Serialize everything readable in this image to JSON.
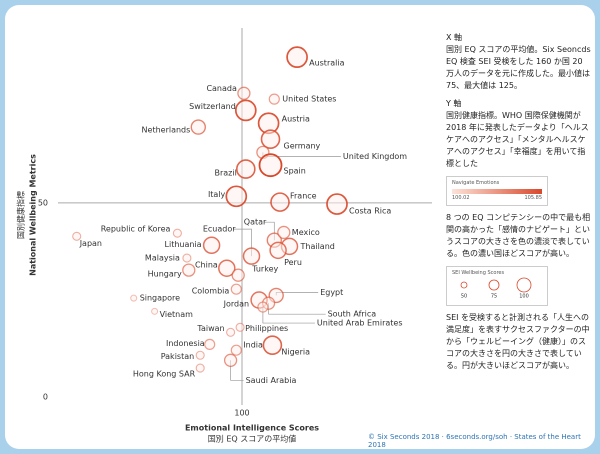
{
  "chart_data": {
    "type": "bubble",
    "x_label": "Emotional Intelligence Scores",
    "x_label_ja": "国別 EQ スコアの平均値",
    "y_label": "National Wellbeing Metrics",
    "y_label_ja": "国別健康指標",
    "labels": [
      "Australia",
      "Canada",
      "United States",
      "Switzerland",
      "Austria",
      "Netherlands",
      "Germany",
      "United Kingdom",
      "Brazil",
      "Spain",
      "Italy",
      "France",
      "Costa Rica",
      "Republic of Korea",
      "Japan",
      "Ecuador",
      "Lithuania",
      "Qatar",
      "Mexico",
      "Thailand",
      "Peru",
      "Malaysia",
      "China",
      "Turkey",
      "Hungary",
      "Colombia",
      "Egypt",
      "Jordan",
      "South Africa",
      "United Arab Emirates",
      "Singapore",
      "Vietnam",
      "Taiwan",
      "Philippines",
      "Indonesia",
      "India",
      "Nigeria",
      "Pakistan",
      "Hong Kong SAR",
      "Saudi Arabia"
    ],
    "x": [
      102.9,
      100.1,
      101.7,
      100.2,
      101.4,
      97.7,
      101.5,
      101.1,
      100.2,
      101.5,
      99.7,
      102.0,
      105.0,
      96.6,
      91.3,
      100.5,
      98.4,
      101.7,
      102.2,
      102.5,
      101.9,
      97.1,
      99.2,
      99.8,
      97.2,
      99.7,
      101.8,
      100.9,
      101.4,
      101.1,
      94.3,
      95.4,
      99.4,
      99.9,
      98.3,
      99.7,
      101.6,
      97.8,
      97.8,
      99.4
    ],
    "values": [
      87.5,
      78.2,
      76.7,
      73.8,
      70.5,
      69.5,
      66.4,
      63.0,
      58.7,
      59.7,
      51.7,
      50.2,
      49.7,
      42.2,
      41.4,
      36.3,
      39.1,
      40.4,
      42.4,
      38.8,
      37.8,
      35.8,
      33.2,
      31.4,
      32.7,
      27.8,
      26.2,
      25.0,
      24.2,
      23.2,
      25.5,
      22.1,
      16.7,
      18.0,
      13.6,
      12.1,
      13.4,
      10.8,
      7.5,
      9.5
    ],
    "sizes": [
      100,
      60,
      50,
      100,
      100,
      70,
      90,
      60,
      90,
      110,
      100,
      90,
      100,
      40,
      40,
      80,
      80,
      70,
      60,
      80,
      80,
      40,
      80,
      60,
      60,
      50,
      70,
      80,
      60,
      50,
      30,
      30,
      40,
      40,
      50,
      50,
      90,
      40,
      40,
      60
    ],
    "color": "#d9482b",
    "xlim": [
      90,
      110
    ],
    "ylim": [
      -2,
      95
    ],
    "xticks": [
      100
    ],
    "yticks": [
      0,
      50
    ],
    "grid": true
  },
  "side_panel": {
    "x_heading": "X 軸",
    "x_text": "国別 EQ スコアの平均値。Six Seoncds EQ 検査 SEI 受検をした 160 か国 20 万人のデータを元に作成した。最小値は 75、最大値は 125。",
    "y_heading": "Y 軸",
    "y_text": "国別健康指標。WHO 国際保健機関が 2018 年に発表したデータより「ヘルスケアへのアクセス」「メンタルヘルスケアへのアクセス」「幸福度」を用いて指標とした",
    "legend1_title": "Navigate Emotions",
    "legend1_min": "100.02",
    "legend1_max": "105.85",
    "legend1_text": "8 つの EQ コンピテンシーの中で最も相関の高かった「感情のナビゲート」というスコアの大きさを色の濃淡で表している。色の濃い国ほどスコアが高い。",
    "legend2_title": "SEI Wellbeing Scores",
    "legend2_ticks": [
      "50",
      "75",
      "100"
    ],
    "legend2_text": "SEI を受検すると計測される「人生への満足度」を表すサクセスファクターの中から「ウェルビーイング（健康）」のスコアの大きさを円の大きさで表している。円が大きいほどスコアが高い。"
  },
  "credit": "© Six Seconds  2018 · 6seconds.org/soh · States of the Heart 2018"
}
